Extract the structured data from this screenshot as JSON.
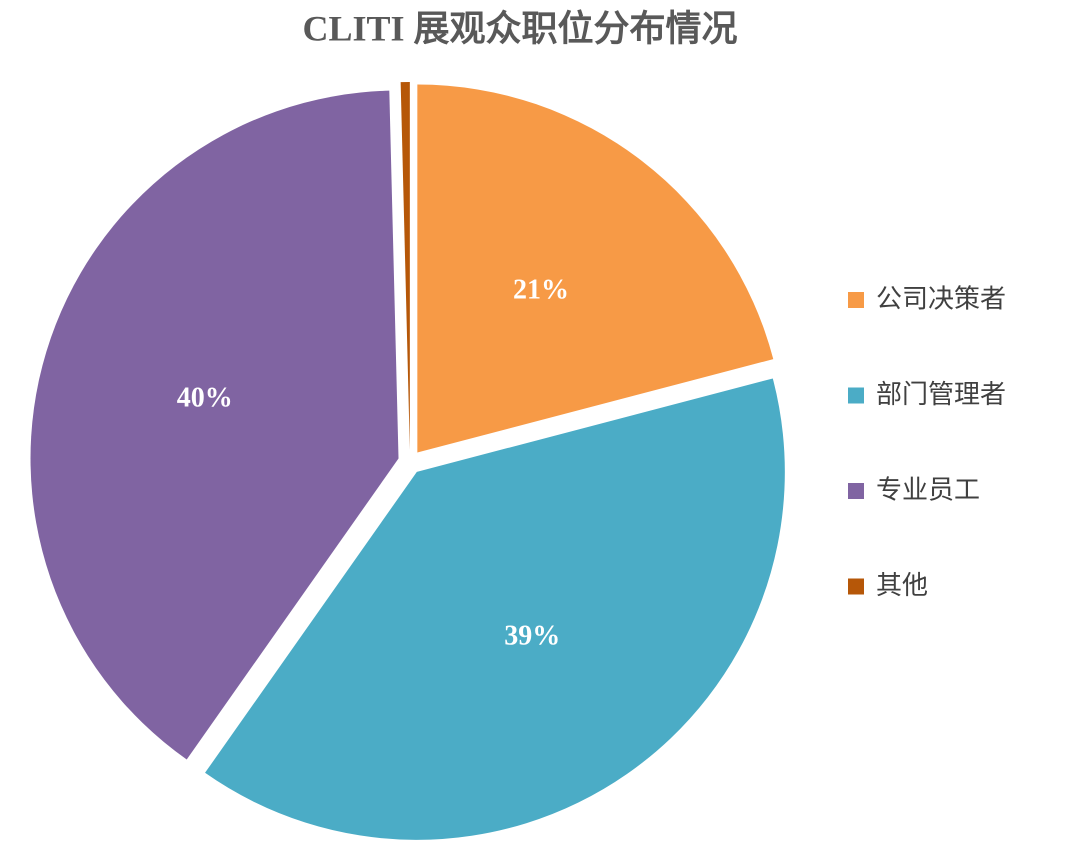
{
  "chart_data": {
    "type": "pie",
    "title": "CLITI 展观众职位分布情况",
    "categories": [
      "公司决策者",
      "部门管理者",
      "专业员工",
      "其他"
    ],
    "values": [
      21,
      39,
      40,
      0.4
    ],
    "value_labels": [
      "21%",
      "39%",
      "40%",
      null
    ],
    "colors": [
      "#f79a46",
      "#4bacc6",
      "#8064a2",
      "#b65708"
    ],
    "legend": "right"
  }
}
